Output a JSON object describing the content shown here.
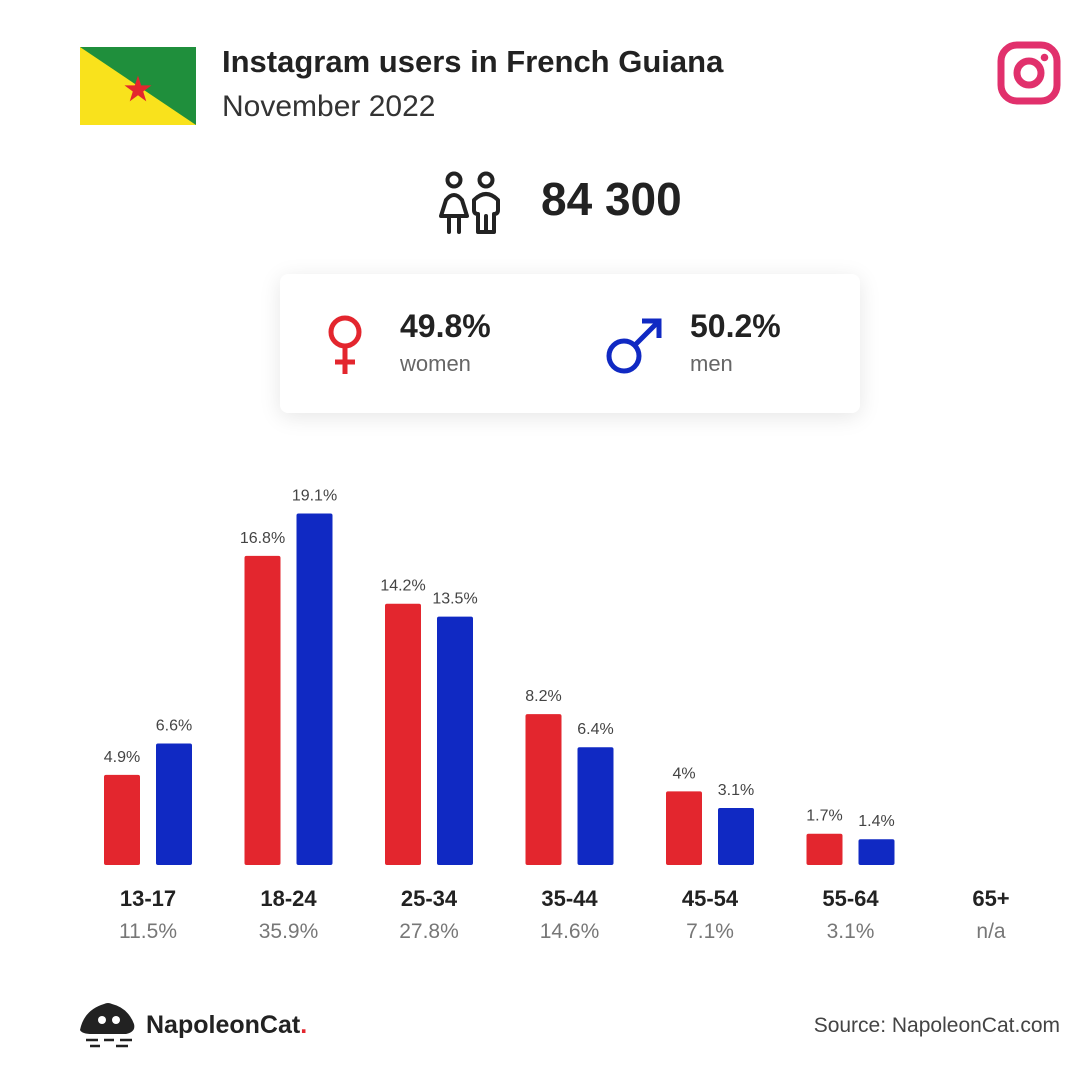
{
  "header": {
    "title": "Instagram users in French Guiana",
    "subtitle": "November 2022"
  },
  "total_users": "84 300",
  "gender": {
    "women": {
      "percent": "49.8%",
      "label": "women"
    },
    "men": {
      "percent": "50.2%",
      "label": "men"
    }
  },
  "colors": {
    "women": "#e3262e",
    "men": "#1029c3",
    "instagram": "#e1306c"
  },
  "icons": [
    "french-guiana-flag-icon",
    "instagram-icon",
    "users-icon",
    "female-symbol-icon",
    "male-symbol-icon",
    "napoleoncat-logo-icon"
  ],
  "chart_data": {
    "type": "bar",
    "categories": [
      "13-17",
      "18-24",
      "25-34",
      "35-44",
      "45-54",
      "55-64",
      "65+"
    ],
    "category_totals": [
      "11.5%",
      "35.9%",
      "27.8%",
      "14.6%",
      "7.1%",
      "3.1%",
      "n/a"
    ],
    "series": [
      {
        "values": [
          4.9,
          16.8,
          14.2,
          8.2,
          4,
          1.7,
          null
        ],
        "labels": [
          "4.9%",
          "16.8%",
          "14.2%",
          "8.2%",
          "4%",
          "1.7%",
          ""
        ]
      },
      {
        "values": [
          6.6,
          19.1,
          13.5,
          6.4,
          3.1,
          1.4,
          null
        ],
        "labels": [
          "6.6%",
          "19.1%",
          "13.5%",
          "6.4%",
          "3.1%",
          "1.4%",
          ""
        ]
      }
    ],
    "ylim": [
      0,
      19.1
    ]
  },
  "footer": {
    "brand": "NapoleonCat",
    "brand_dot": ".",
    "source": "Source: NapoleonCat.com"
  }
}
